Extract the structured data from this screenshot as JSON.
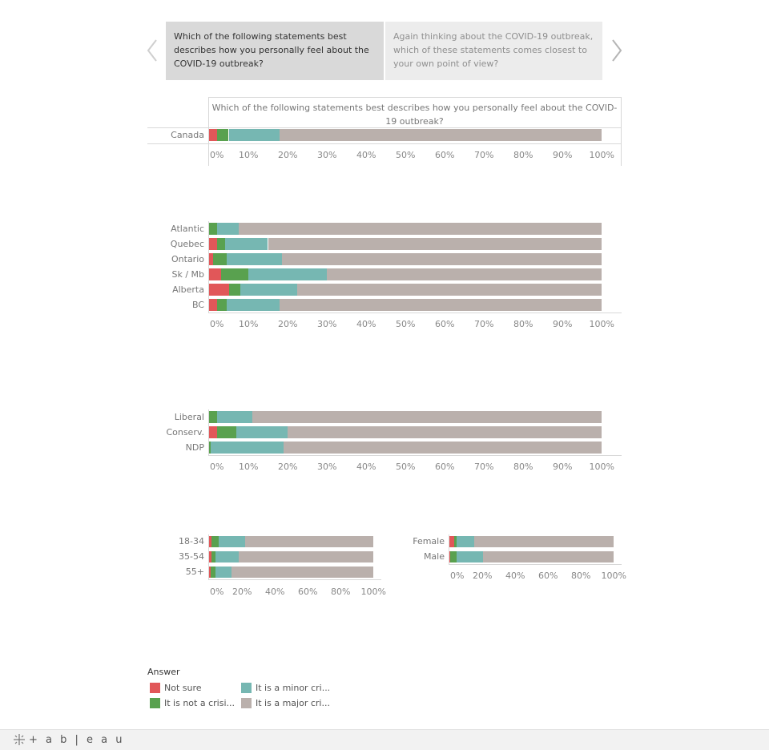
{
  "story": {
    "points": [
      {
        "text": "Which of the following statements best describes how you personally feel about the COVID-19 outbreak?",
        "active": true
      },
      {
        "text": "Again thinking about the COVID-19 outbreak, which of these statements comes closest to your own point of view?",
        "active": false
      }
    ],
    "prev_icon": "chevron-left-icon",
    "next_icon": "chevron-right-icon"
  },
  "colors": {
    "not_sure": "#e15759",
    "not_a_crisis": "#59a14f",
    "minor_crisis": "#76b7b2",
    "major_crisis": "#bab0ac"
  },
  "chart_data": [
    {
      "type": "bar",
      "orientation": "horizontal",
      "stacked": "percent",
      "title": "Which of the following statements best describes how you personally feel about the COVID-19 outbreak?",
      "categories": [
        "Canada"
      ],
      "series": [
        {
          "name": "Not sure",
          "values": [
            2
          ]
        },
        {
          "name": "It is not a crisi...",
          "values": [
            3
          ]
        },
        {
          "name": "It is a minor cri...",
          "values": [
            13
          ]
        },
        {
          "name": "It is a major cri...",
          "values": [
            82
          ]
        }
      ],
      "xlim": [
        0,
        100
      ],
      "ticks": [
        "0%",
        "10%",
        "20%",
        "30%",
        "40%",
        "50%",
        "60%",
        "70%",
        "80%",
        "90%",
        "100%"
      ]
    },
    {
      "type": "bar",
      "orientation": "horizontal",
      "stacked": "percent",
      "categories": [
        "Atlantic",
        "Quebec",
        "Ontario",
        "Sk / Mb",
        "Alberta",
        "BC"
      ],
      "series": [
        {
          "name": "Not sure",
          "values": [
            0,
            2,
            1,
            3,
            5,
            2
          ]
        },
        {
          "name": "It is not a crisi...",
          "values": [
            2,
            2,
            3.5,
            7,
            3,
            2.5
          ]
        },
        {
          "name": "It is a minor cri...",
          "values": [
            5.5,
            11,
            14,
            20,
            14.5,
            13.5
          ]
        },
        {
          "name": "It is a major cri...",
          "values": [
            92.5,
            85,
            81.5,
            70,
            77.5,
            82
          ]
        }
      ],
      "xlim": [
        0,
        100
      ],
      "ticks": [
        "0%",
        "10%",
        "20%",
        "30%",
        "40%",
        "50%",
        "60%",
        "70%",
        "80%",
        "90%",
        "100%"
      ]
    },
    {
      "type": "bar",
      "orientation": "horizontal",
      "stacked": "percent",
      "categories": [
        "Liberal",
        "Conserv.",
        "NDP"
      ],
      "series": [
        {
          "name": "Not sure",
          "values": [
            0,
            2,
            0
          ]
        },
        {
          "name": "It is not a crisi...",
          "values": [
            2,
            5,
            0.5
          ]
        },
        {
          "name": "It is a minor cri...",
          "values": [
            9,
            13,
            18.5
          ]
        },
        {
          "name": "It is a major cri...",
          "values": [
            89,
            80,
            81
          ]
        }
      ],
      "xlim": [
        0,
        100
      ],
      "ticks": [
        "0%",
        "10%",
        "20%",
        "30%",
        "40%",
        "50%",
        "60%",
        "70%",
        "80%",
        "90%",
        "100%"
      ]
    },
    {
      "type": "bar",
      "orientation": "horizontal",
      "stacked": "percent",
      "categories": [
        "18-34",
        "35-54",
        "55+"
      ],
      "series": [
        {
          "name": "Not sure",
          "values": [
            1.5,
            1.5,
            1
          ]
        },
        {
          "name": "It is not a crisi...",
          "values": [
            4.5,
            2.5,
            3
          ]
        },
        {
          "name": "It is a minor cri...",
          "values": [
            16,
            14,
            9.5
          ]
        },
        {
          "name": "It is a major cri...",
          "values": [
            78,
            82,
            86.5
          ]
        }
      ],
      "xlim": [
        0,
        100
      ],
      "ticks": [
        "0%",
        "20%",
        "40%",
        "60%",
        "80%",
        "100%"
      ]
    },
    {
      "type": "bar",
      "orientation": "horizontal",
      "stacked": "percent",
      "categories": [
        "Female",
        "Male"
      ],
      "series": [
        {
          "name": "Not sure",
          "values": [
            3,
            0.5
          ]
        },
        {
          "name": "It is not a crisi...",
          "values": [
            1.5,
            4
          ]
        },
        {
          "name": "It is a minor cri...",
          "values": [
            10.5,
            16
          ]
        },
        {
          "name": "It is a major cri...",
          "values": [
            85,
            79.5
          ]
        }
      ],
      "xlim": [
        0,
        100
      ],
      "ticks": [
        "0%",
        "20%",
        "40%",
        "60%",
        "80%",
        "100%"
      ]
    }
  ],
  "legend": {
    "title": "Answer",
    "items": [
      {
        "label": "Not sure",
        "color": "#e15759"
      },
      {
        "label": "It is a minor cri...",
        "color": "#76b7b2"
      },
      {
        "label": "It is not a crisi...",
        "color": "#59a14f"
      },
      {
        "label": "It is a major cri...",
        "color": "#bab0ac"
      }
    ]
  },
  "footer": {
    "logo_text": "+ a b | e a u",
    "logo_icon": "tableau-logo-icon"
  }
}
